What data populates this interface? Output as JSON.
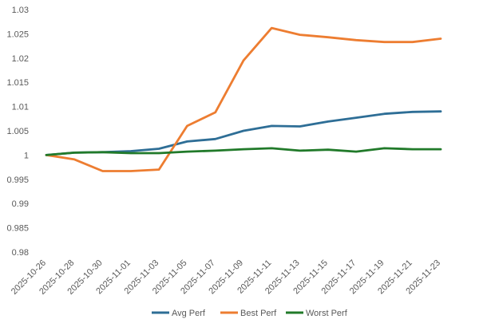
{
  "chart_data": {
    "type": "line",
    "title": "",
    "xlabel": "",
    "ylabel": "",
    "ylim": [
      0.98,
      1.03
    ],
    "y_ticks": [
      "1.03",
      "1.025",
      "1.02",
      "1.015",
      "1.01",
      "1.005",
      "1",
      "0.995",
      "0.99",
      "0.985",
      "0.98"
    ],
    "x_tick_labels": [
      "2025-10-26",
      "2025-10-28",
      "2025-10-30",
      "2025-11-01",
      "2025-11-03",
      "2025-11-05",
      "2025-11-07",
      "2025-11-09",
      "2025-11-11",
      "2025-11-13",
      "2025-11-15",
      "2025-11-17",
      "2025-11-19",
      "2025-11-21",
      "2025-11-23"
    ],
    "grid": false,
    "legend_position": "bottom",
    "x": [
      "2025-10-26",
      "2025-10-28",
      "2025-10-30",
      "2025-11-01",
      "2025-11-03",
      "2025-11-05",
      "2025-11-07",
      "2025-11-09",
      "2025-11-11",
      "2025-11-13",
      "2025-11-15",
      "2025-11-17",
      "2025-11-19",
      "2025-11-21",
      "2025-11-23"
    ],
    "series": [
      {
        "name": "Avg Perf",
        "color": "#2e6e96",
        "values": [
          1.0,
          1.0005,
          1.0006,
          1.0008,
          1.0013,
          1.0028,
          1.0033,
          1.005,
          1.006,
          1.0059,
          1.0069,
          1.0077,
          1.0085,
          1.0089,
          1.009
        ]
      },
      {
        "name": "Best Perf",
        "color": "#ed7d31",
        "values": [
          1.0,
          0.9991,
          0.9967,
          0.9967,
          0.997,
          1.006,
          1.0088,
          1.0195,
          1.0262,
          1.0248,
          1.0243,
          1.0237,
          1.0233,
          1.0233,
          1.024
        ]
      },
      {
        "name": "Worst Perf",
        "color": "#217a2a",
        "values": [
          1.0,
          1.0005,
          1.0006,
          1.0004,
          1.0004,
          1.0007,
          1.0009,
          1.0012,
          1.0014,
          1.0009,
          1.0011,
          1.0007,
          1.0014,
          1.0012,
          1.0012
        ]
      }
    ]
  }
}
